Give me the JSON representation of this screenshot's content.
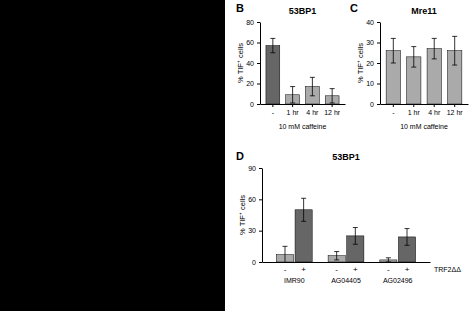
{
  "chart_data": [
    {
      "type": "bar",
      "title": "53BP1",
      "xlabel": "10 mM caffeine",
      "ylabel": "% TIF⁺ cells",
      "annotations": [
        "B"
      ],
      "categories": [
        "-",
        "1 hr",
        "4 hr",
        "12 hr"
      ],
      "values": [
        57,
        9,
        17,
        8
      ],
      "errors": [
        7,
        8,
        9,
        7
      ],
      "colors": [
        "#666666",
        "#aaaaaa",
        "#aaaaaa",
        "#aaaaaa"
      ],
      "ylim": [
        0,
        80
      ],
      "yticks": [
        0,
        20,
        40,
        60,
        80
      ]
    },
    {
      "type": "bar",
      "title": "Mre11",
      "xlabel": "10 mM caffeine",
      "ylabel": "% TIF⁺ cells",
      "annotations": [
        "C"
      ],
      "categories": [
        "-",
        "1 hr",
        "4 hr",
        "12 hr"
      ],
      "values": [
        26,
        23,
        27,
        26
      ],
      "errors": [
        6,
        5,
        5,
        7
      ],
      "colors": [
        "#aaaaaa",
        "#aaaaaa",
        "#aaaaaa",
        "#aaaaaa"
      ],
      "ylim": [
        0,
        40
      ],
      "yticks": [
        0,
        10,
        20,
        30,
        40
      ]
    },
    {
      "type": "bar",
      "title": "53BP1",
      "ylabel": "% TIF⁺ cells",
      "annotations": [
        "D",
        "TRF2ΔΔ"
      ],
      "categories": [
        "IMR90",
        "AG04405",
        "AG02496"
      ],
      "series": [
        {
          "name": "-",
          "color": "#aaaaaa",
          "values": [
            7,
            6,
            2
          ],
          "errors": [
            8,
            4,
            2
          ]
        },
        {
          "name": "+",
          "color": "#666666",
          "values": [
            50,
            25,
            24
          ],
          "errors": [
            11,
            8,
            8
          ]
        }
      ],
      "ylim": [
        0,
        90
      ],
      "yticks": [
        0,
        30,
        60,
        90
      ]
    }
  ]
}
